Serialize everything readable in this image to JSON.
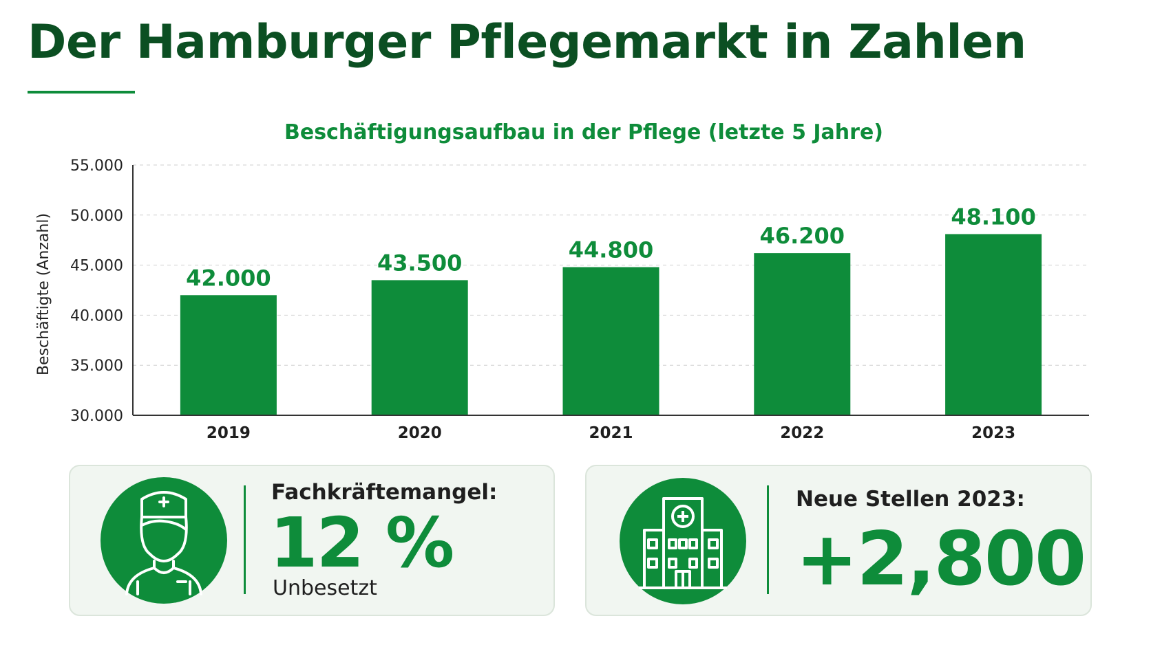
{
  "header": {
    "title": "Der Hamburger Pflegemarkt in Zahlen"
  },
  "chart_data": {
    "type": "bar",
    "title": "Beschäftigungsaufbau in der Pflege (letzte 5 Jahre)",
    "xlabel": "",
    "ylabel": "Beschäftigte (Anzahl)",
    "categories": [
      "2019",
      "2020",
      "2021",
      "2022",
      "2023"
    ],
    "values": [
      42000,
      43500,
      44800,
      46200,
      48100
    ],
    "value_labels": [
      "42.000",
      "43.500",
      "44.800",
      "46.200",
      "48.100"
    ],
    "ylim": [
      30000,
      55000
    ],
    "yticks": [
      30000,
      35000,
      40000,
      45000,
      50000,
      55000
    ],
    "ytick_labels": [
      "30.000",
      "35.000",
      "40.000",
      "45.000",
      "50.000",
      "55.000"
    ],
    "grid": true,
    "bar_color": "#0e8c3a",
    "label_color": "#0e8c3a"
  },
  "cards": [
    {
      "icon": "nurse-icon",
      "label": "Fachkräftemangel:",
      "value": "12 %",
      "sub": "Unbesetzt"
    },
    {
      "icon": "hospital-icon",
      "label": "Neue Stellen 2023:",
      "value": "+2,800"
    }
  ],
  "colors": {
    "accent": "#0e8c3a",
    "title": "#0b4f22",
    "card_bg": "#f1f6f1"
  }
}
